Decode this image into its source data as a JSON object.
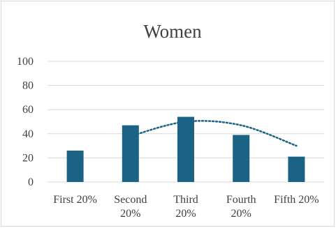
{
  "chart_data": {
    "type": "bar",
    "title": "Women",
    "categories": [
      "First 20%",
      "Second 20%",
      "Third 20%",
      "Fourth 20%",
      "Fifth 20%"
    ],
    "category_label_lines": [
      [
        "First 20%"
      ],
      [
        "Second",
        "20%"
      ],
      [
        "Third",
        "20%"
      ],
      [
        "Fourth",
        "20%"
      ],
      [
        "Fifth 20%"
      ]
    ],
    "series": [
      {
        "values": [
          26,
          47,
          54,
          39,
          21
        ],
        "color": "#1a6384"
      }
    ],
    "trendline": {
      "style": "dotted",
      "color": "#1a6384",
      "points": [
        {
          "category_index": 1,
          "value": 38
        },
        {
          "category_index": 2,
          "value": 50
        },
        {
          "category_index": 3,
          "value": 47
        },
        {
          "category_index": 4,
          "value": 30
        }
      ]
    },
    "ylim": [
      0,
      100
    ],
    "yticks": [
      0,
      20,
      40,
      60,
      80,
      100
    ],
    "ytick_labels": [
      "0",
      "20",
      "40",
      "60",
      "80",
      "100"
    ],
    "grid": true,
    "gridline_color": "#d9d9d9",
    "xlabel": "",
    "ylabel": "",
    "legend": "none"
  }
}
